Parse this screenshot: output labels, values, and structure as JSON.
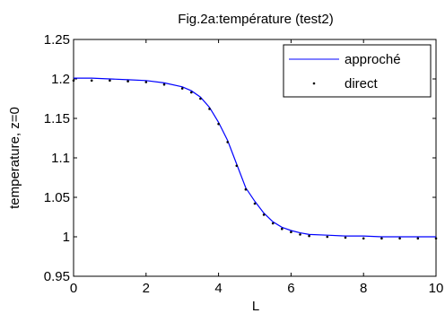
{
  "chart_data": {
    "type": "line",
    "title": "Fig.2a:température (test2)",
    "xlabel": "L",
    "ylabel": "temperature, z=0",
    "xlim": [
      0,
      10
    ],
    "ylim": [
      0.95,
      1.25
    ],
    "xticks": [
      0,
      2,
      4,
      6,
      8,
      10
    ],
    "yticks": [
      0.95,
      1,
      1.05,
      1.1,
      1.15,
      1.2,
      1.25
    ],
    "xtick_labels": [
      "0",
      "2",
      "4",
      "6",
      "8",
      "10"
    ],
    "ytick_labels": [
      "0.95",
      "1",
      "1.05",
      "1.1",
      "1.15",
      "1.2",
      "1.25"
    ],
    "grid": false,
    "legend_position": "top-right",
    "series": [
      {
        "name": "approché",
        "style": "line",
        "color": "#0000ff",
        "x": [
          0,
          0.5,
          1,
          1.5,
          2,
          2.5,
          3,
          3.25,
          3.5,
          3.75,
          4,
          4.25,
          4.5,
          4.75,
          5,
          5.25,
          5.5,
          5.75,
          6,
          6.25,
          6.5,
          7,
          7.5,
          8,
          8.5,
          9,
          9.5,
          10
        ],
        "y": [
          1.201,
          1.201,
          1.2,
          1.199,
          1.198,
          1.195,
          1.19,
          1.185,
          1.177,
          1.164,
          1.145,
          1.122,
          1.092,
          1.062,
          1.045,
          1.03,
          1.019,
          1.012,
          1.008,
          1.005,
          1.003,
          1.002,
          1.001,
          1.001,
          1.0,
          1.0,
          1.0,
          1.0
        ]
      },
      {
        "name": "direct",
        "style": "dots",
        "color": "#000000",
        "x": [
          0,
          0.5,
          1,
          1.5,
          2,
          2.5,
          3,
          3.25,
          3.5,
          3.75,
          4,
          4.25,
          4.5,
          4.75,
          5,
          5.25,
          5.5,
          5.75,
          6,
          6.25,
          6.5,
          7,
          7.5,
          8,
          8.5,
          9,
          9.5,
          10
        ],
        "y": [
          1.198,
          1.198,
          1.198,
          1.197,
          1.196,
          1.193,
          1.188,
          1.183,
          1.175,
          1.162,
          1.143,
          1.12,
          1.09,
          1.06,
          1.042,
          1.028,
          1.017,
          1.01,
          1.006,
          1.003,
          1.001,
          1.0,
          0.999,
          0.998,
          0.998,
          0.998,
          0.998,
          0.998
        ]
      }
    ]
  }
}
